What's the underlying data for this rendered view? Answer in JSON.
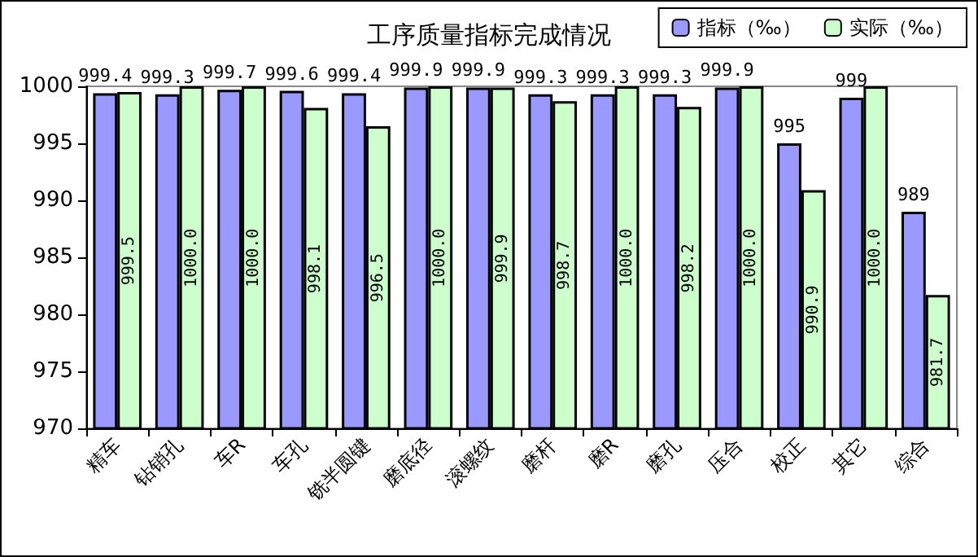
{
  "chart_data": {
    "type": "bar",
    "title": "工序质量指标完成情况",
    "categories": [
      "精车",
      "钻销孔",
      "车R",
      "车孔",
      "铣半圆键",
      "磨底径",
      "滚螺纹",
      "磨杆",
      "磨R",
      "磨孔",
      "压合",
      "校正",
      "其它",
      "综合"
    ],
    "series": [
      {
        "name": "指标（‰）",
        "color": "#9999ff",
        "values": [
          999.4,
          999.3,
          999.7,
          999.6,
          999.4,
          999.9,
          999.9,
          999.3,
          999.3,
          999.3,
          999.9,
          995,
          999,
          989
        ],
        "value_labels": [
          "999.4",
          "999.3",
          "999.7",
          "999.6",
          "999.4",
          "999.9",
          "999.9",
          "999.3",
          "999.3",
          "999.3",
          "999.9",
          "995",
          "999",
          "989"
        ]
      },
      {
        "name": "实际（‰）",
        "color": "#ccffcc",
        "values": [
          999.5,
          1000.0,
          1000.0,
          998.1,
          996.5,
          1000.0,
          999.9,
          998.7,
          1000.0,
          998.2,
          1000.0,
          990.9,
          1000.0,
          981.7
        ],
        "value_labels": [
          "999.5",
          "1000.0",
          "1000.0",
          "998.1",
          "996.5",
          "1000.0",
          "999.9",
          "998.7",
          "1000.0",
          "998.2",
          "1000.0",
          "990.9",
          "1000.0",
          "981.7"
        ]
      }
    ],
    "ylim": [
      970,
      1000
    ],
    "yticks": [
      970,
      975,
      980,
      985,
      990,
      995,
      1000
    ],
    "grid": false,
    "legend": "top right"
  }
}
